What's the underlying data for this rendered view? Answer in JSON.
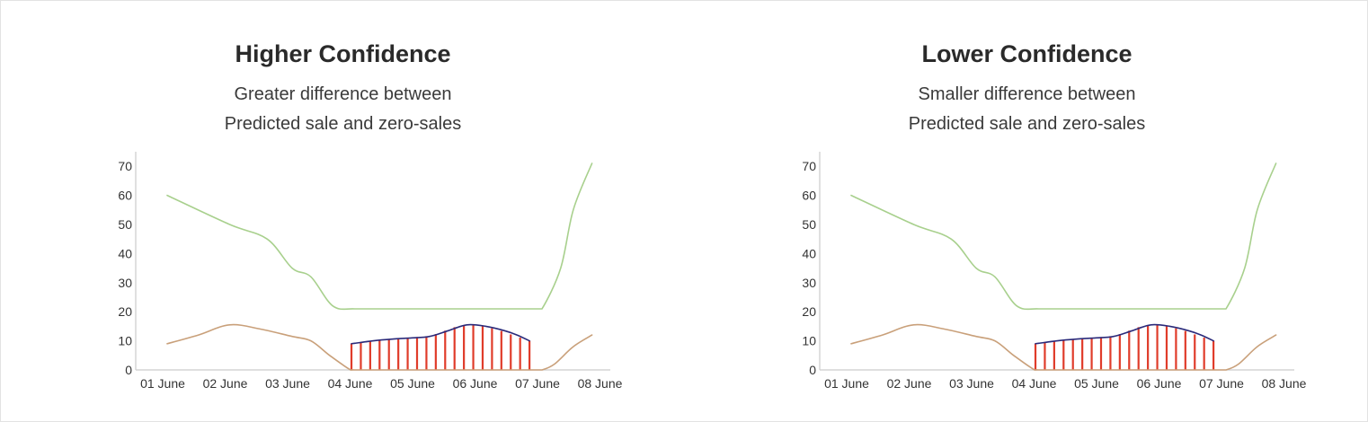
{
  "chart_data": [
    {
      "type": "line",
      "title": "Higher Confidence",
      "subtitle": [
        "Greater difference between",
        "Predicted sale and zero-sales"
      ],
      "categories": [
        "01 June",
        "02 June",
        "03 June",
        "04 June",
        "05 June",
        "06 June",
        "07 June",
        "08 June"
      ],
      "y_ticks": [
        0,
        10,
        20,
        30,
        40,
        50,
        60,
        70
      ],
      "ylim": [
        0,
        75
      ],
      "grid": false,
      "series": [
        {
          "color": "#a8d08d",
          "x": [
            0,
            1,
            1.6,
            2,
            2.3,
            2.65,
            3,
            3.5,
            4,
            4.5,
            5,
            5.5,
            5.9,
            6,
            6.3,
            6.5,
            6.8
          ],
          "y": [
            60,
            50,
            45,
            35,
            32,
            22,
            21,
            21,
            21,
            21,
            21,
            21,
            21,
            21,
            35,
            55,
            71
          ]
        },
        {
          "color": "#c9a07a",
          "x": [
            0,
            0.5,
            1,
            1.5,
            2,
            2.3,
            2.6,
            2.9,
            3,
            3.5,
            4,
            4.5,
            5,
            5.5,
            5.9,
            6,
            6.2,
            6.5,
            6.8
          ],
          "y": [
            9,
            12,
            15.5,
            14,
            11.5,
            10,
            5,
            0.5,
            0,
            0,
            0,
            0,
            0,
            0,
            0,
            0,
            2,
            8,
            12
          ]
        },
        {
          "color": "#2a2a7a",
          "x": [
            2.95,
            3.3,
            3.6,
            3.9,
            4.2,
            4.5,
            4.8,
            5.1,
            5.4,
            5.6,
            5.8
          ],
          "y": [
            9,
            10,
            10.6,
            11,
            11.5,
            13.5,
            15.5,
            15,
            13.5,
            12,
            10
          ]
        }
      ],
      "bars": {
        "color": "#e03c2a",
        "x": [
          2.95,
          3.1,
          3.25,
          3.4,
          3.55,
          3.7,
          3.85,
          4.0,
          4.15,
          4.3,
          4.45,
          4.6,
          4.75,
          4.9,
          5.05,
          5.2,
          5.35,
          5.5,
          5.65,
          5.8
        ],
        "y": [
          9,
          9.4,
          9.8,
          10.1,
          10.4,
          10.8,
          11.1,
          11.3,
          11.6,
          12.3,
          13.5,
          14.7,
          15.4,
          15.5,
          15.2,
          14.3,
          13.4,
          12.2,
          11.1,
          10
        ],
        "baseline": 0
      }
    },
    {
      "type": "line",
      "title": "Lower Confidence",
      "subtitle": [
        "Smaller difference between",
        "Predicted sale and zero-sales"
      ],
      "categories": [
        "01 June",
        "02 June",
        "03 June",
        "04 June",
        "05 June",
        "06 June",
        "07 June",
        "08 June"
      ],
      "y_ticks": [
        0,
        10,
        20,
        30,
        40,
        50,
        60,
        70
      ],
      "ylim": [
        0,
        75
      ],
      "grid": false,
      "series": [
        {
          "color": "#a8d08d",
          "x": [
            0,
            1,
            1.6,
            2,
            2.3,
            2.65,
            3,
            3.5,
            4,
            4.5,
            5,
            5.5,
            5.9,
            6,
            6.3,
            6.5,
            6.8
          ],
          "y": [
            60,
            50,
            45,
            35,
            32,
            22,
            21,
            21,
            21,
            21,
            21,
            21,
            21,
            21,
            35,
            55,
            71
          ]
        },
        {
          "color": "#c9a07a",
          "x": [
            0,
            0.5,
            1,
            1.5,
            2,
            2.3,
            2.6,
            2.9,
            3,
            3.5,
            4,
            4.5,
            5,
            5.5,
            5.9,
            6,
            6.2,
            6.5,
            6.8
          ],
          "y": [
            9,
            12,
            15.5,
            14,
            11.5,
            10,
            5,
            0.5,
            0,
            0,
            0,
            0,
            0,
            0,
            0,
            0,
            2,
            8,
            12
          ]
        },
        {
          "color": "#2a2a7a",
          "x": [
            2.95,
            3.3,
            3.6,
            3.9,
            4.2,
            4.5,
            4.8,
            5.1,
            5.4,
            5.6,
            5.8
          ],
          "y": [
            9,
            10,
            10.6,
            11,
            11.5,
            13.5,
            15.5,
            15,
            13.5,
            12,
            10
          ]
        }
      ],
      "bars": {
        "color": "#e03c2a",
        "x": [
          2.95,
          3.1,
          3.25,
          3.4,
          3.55,
          3.7,
          3.85,
          4.0,
          4.15,
          4.3,
          4.45,
          4.6,
          4.75,
          4.9,
          5.05,
          5.2,
          5.35,
          5.5,
          5.65,
          5.8
        ],
        "y": [
          9,
          9.4,
          9.8,
          10.1,
          10.4,
          10.8,
          11.1,
          11.3,
          11.6,
          12.3,
          13.5,
          14.7,
          15.4,
          15.5,
          15.2,
          14.3,
          13.4,
          12.2,
          11.1,
          10
        ],
        "baseline": 0
      }
    }
  ]
}
